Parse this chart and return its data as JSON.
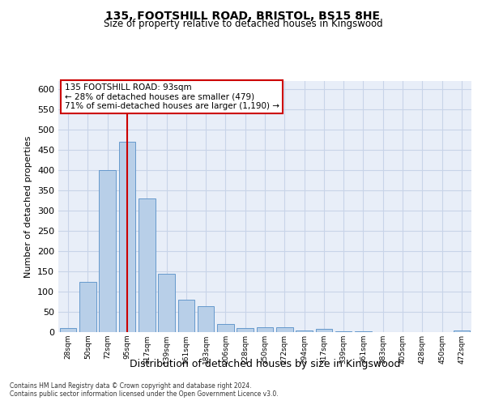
{
  "title1": "135, FOOTSHILL ROAD, BRISTOL, BS15 8HE",
  "title2": "Size of property relative to detached houses in Kingswood",
  "xlabel": "Distribution of detached houses by size in Kingswood",
  "ylabel": "Number of detached properties",
  "categories": [
    "28sqm",
    "50sqm",
    "72sqm",
    "95sqm",
    "117sqm",
    "139sqm",
    "161sqm",
    "183sqm",
    "206sqm",
    "228sqm",
    "250sqm",
    "272sqm",
    "294sqm",
    "317sqm",
    "339sqm",
    "361sqm",
    "383sqm",
    "405sqm",
    "428sqm",
    "450sqm",
    "472sqm"
  ],
  "values": [
    10,
    125,
    400,
    470,
    330,
    145,
    80,
    65,
    20,
    10,
    12,
    12,
    5,
    8,
    3,
    3,
    0,
    0,
    0,
    0,
    5
  ],
  "bar_color": "#b8cfe8",
  "bar_edge_color": "#6699cc",
  "bar_width": 0.85,
  "vline_color": "#cc0000",
  "vline_x": 3.0,
  "annotation_line1": "135 FOOTSHILL ROAD: 93sqm",
  "annotation_line2": "← 28% of detached houses are smaller (479)",
  "annotation_line3": "71% of semi-detached houses are larger (1,190) →",
  "annotation_box_color": "#cc0000",
  "ylim": [
    0,
    620
  ],
  "yticks": [
    0,
    50,
    100,
    150,
    200,
    250,
    300,
    350,
    400,
    450,
    500,
    550,
    600
  ],
  "footer1": "Contains HM Land Registry data © Crown copyright and database right 2024.",
  "footer2": "Contains public sector information licensed under the Open Government Licence v3.0.",
  "bg_color": "#ffffff",
  "plot_bg_color": "#e8eef8",
  "grid_color": "#c8d4e8"
}
